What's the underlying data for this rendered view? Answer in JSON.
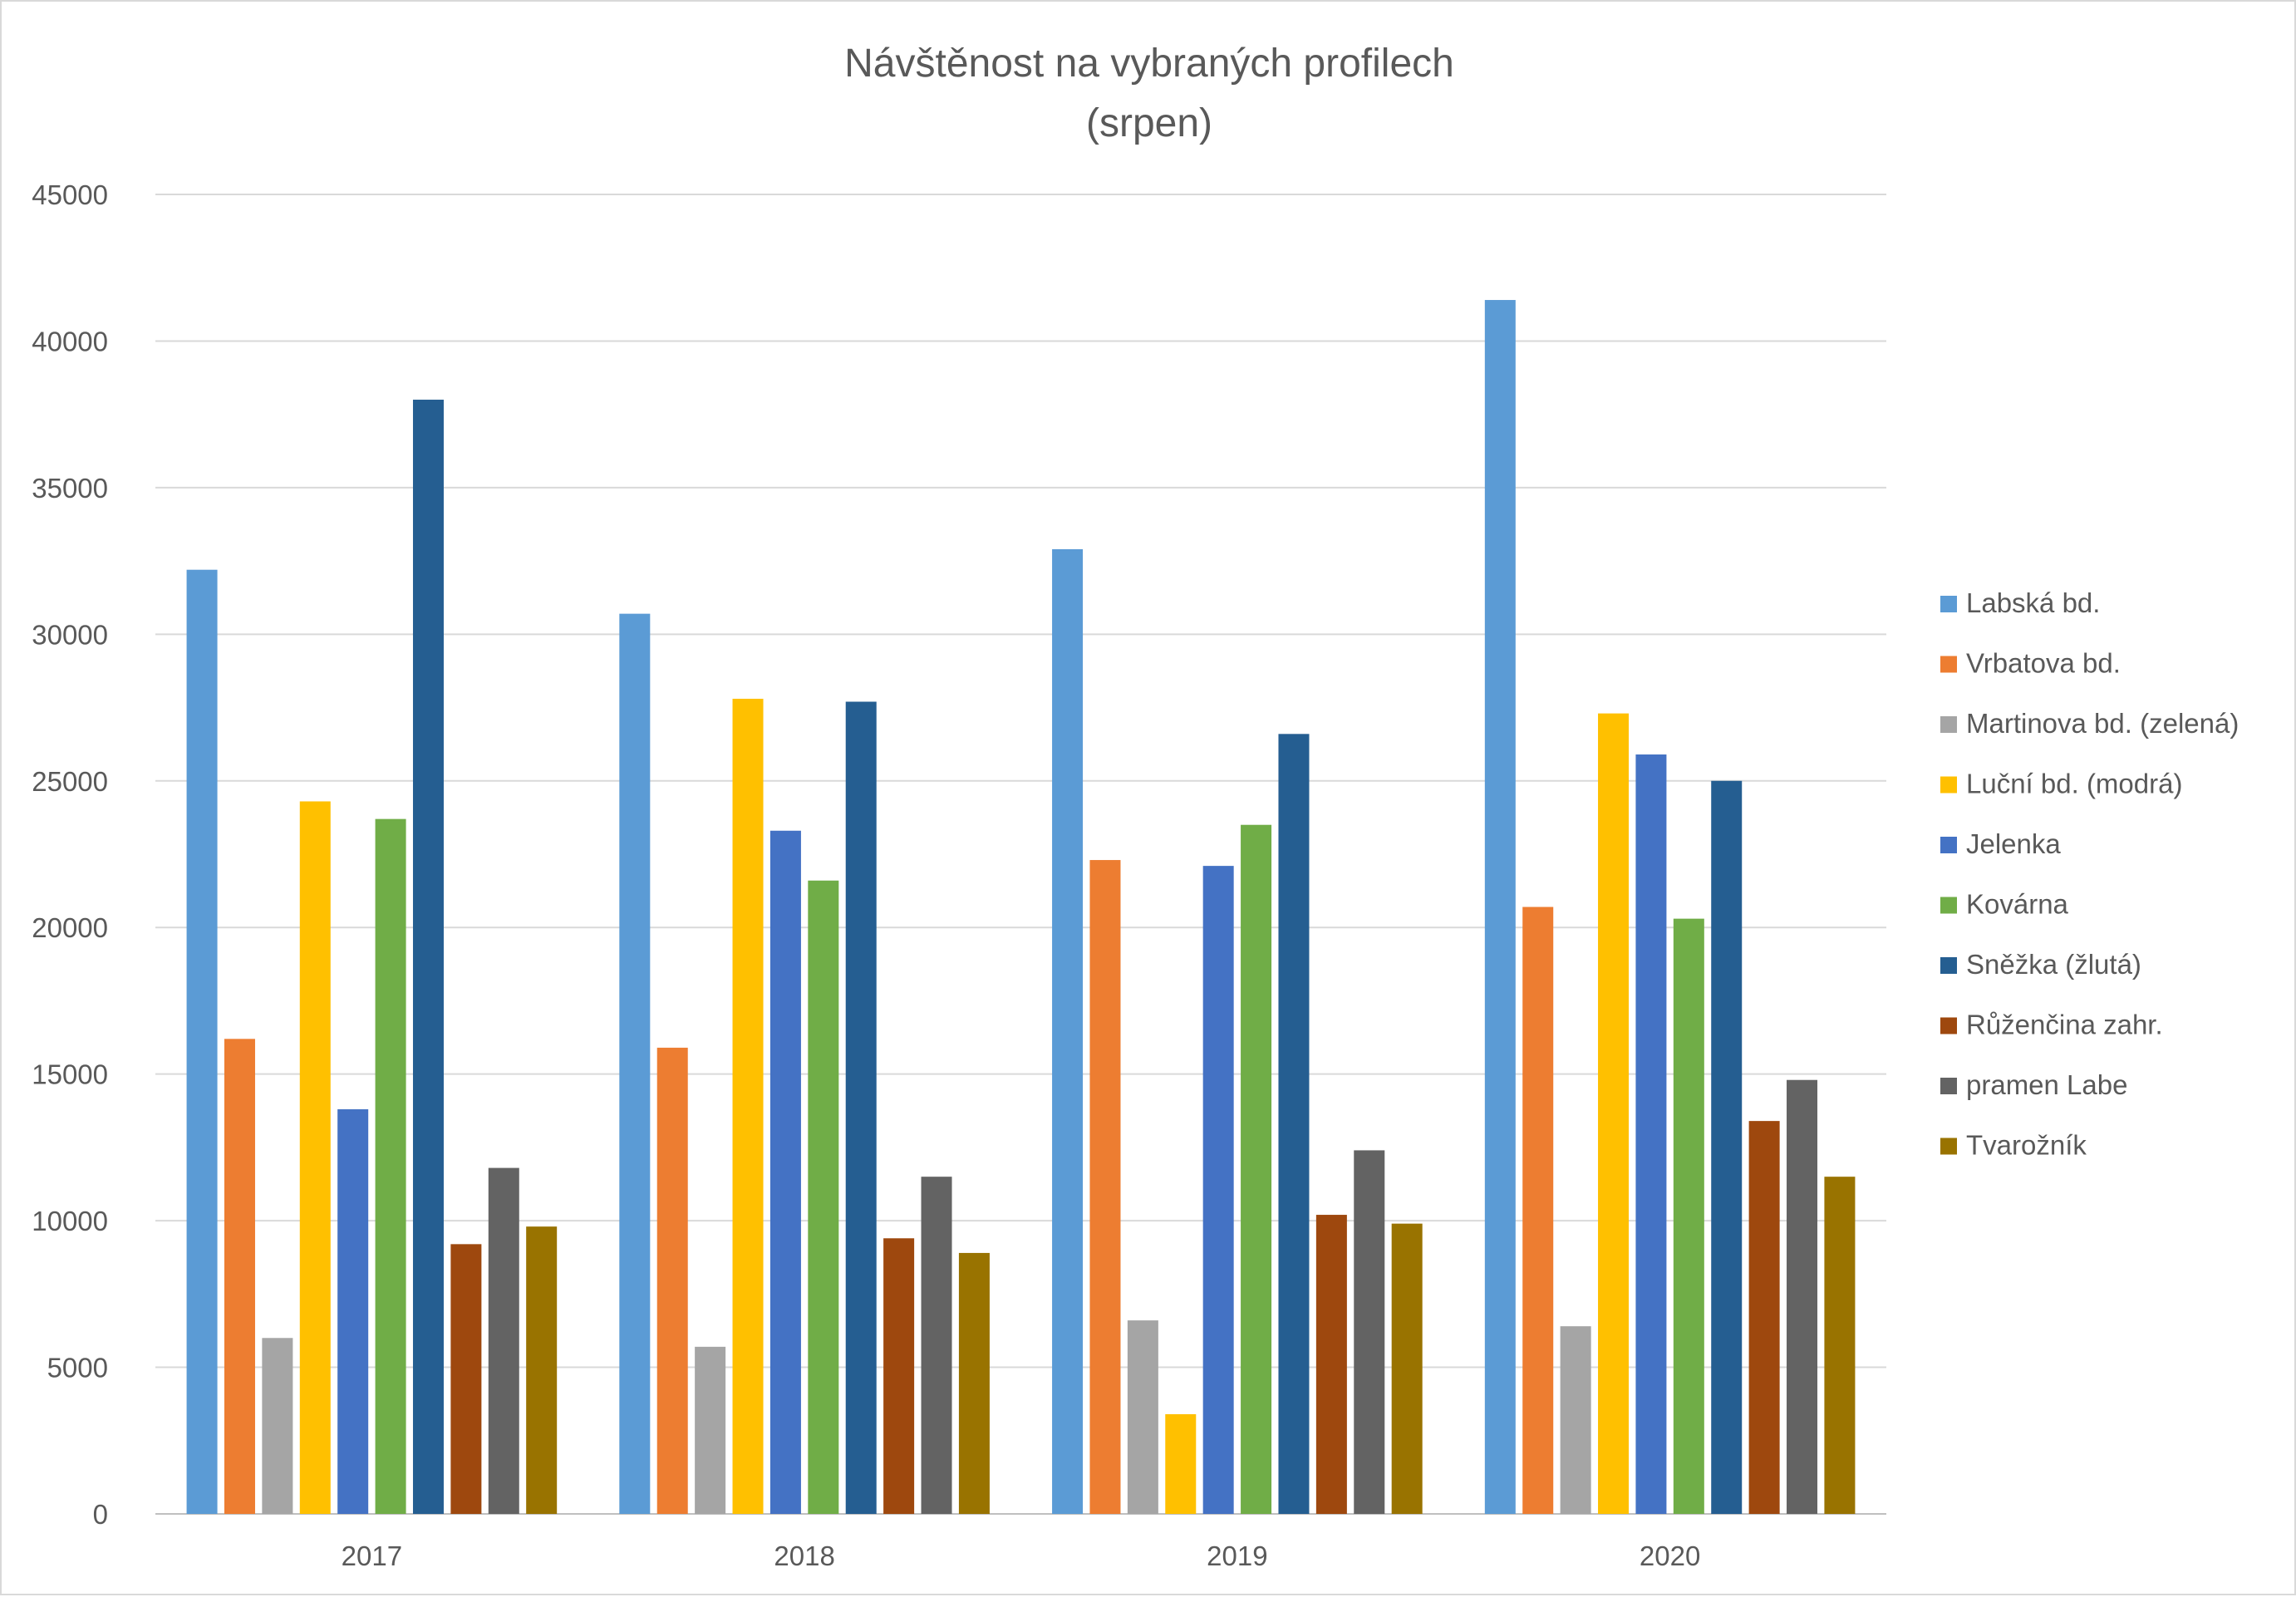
{
  "chart_data": {
    "type": "bar",
    "title": "Návštěnost na vybraných profilech",
    "subtitle": "(srpen)",
    "xlabel": "",
    "ylabel": "",
    "categories": [
      "2017",
      "2018",
      "2019",
      "2020"
    ],
    "ylim": [
      0,
      45000
    ],
    "yticks": [
      "0",
      "5000",
      "10000",
      "15000",
      "20000",
      "25000",
      "30000",
      "35000",
      "40000",
      "45000"
    ],
    "grid": true,
    "legend_position": "right",
    "series": [
      {
        "name": "Labská bd.",
        "color": "#5b9bd5",
        "values": [
          32200,
          30700,
          32900,
          41400
        ]
      },
      {
        "name": "Vrbatova bd.",
        "color": "#ed7d31",
        "values": [
          16200,
          15900,
          22300,
          20700
        ]
      },
      {
        "name": "Martinova bd. (zelená)",
        "color": "#a5a5a5",
        "values": [
          6000,
          5700,
          6600,
          6400
        ]
      },
      {
        "name": "Luční bd. (modrá)",
        "color": "#ffc000",
        "values": [
          24300,
          27800,
          3400,
          27300
        ]
      },
      {
        "name": "Jelenka",
        "color": "#4472c4",
        "values": [
          13800,
          23300,
          22100,
          25900
        ]
      },
      {
        "name": "Kovárna",
        "color": "#70ad47",
        "values": [
          23700,
          21600,
          23500,
          20300
        ]
      },
      {
        "name": "Sněžka (žlutá)",
        "color": "#255e91",
        "values": [
          38000,
          27700,
          26600,
          25000
        ]
      },
      {
        "name": "Růženčina zahr.",
        "color": "#9e480e",
        "values": [
          9200,
          9400,
          10200,
          13400
        ]
      },
      {
        "name": "pramen Labe",
        "color": "#636363",
        "values": [
          11800,
          11500,
          12400,
          14800
        ]
      },
      {
        "name": "Tvarožník",
        "color": "#997300",
        "values": [
          9800,
          8900,
          9900,
          11500
        ]
      }
    ]
  }
}
